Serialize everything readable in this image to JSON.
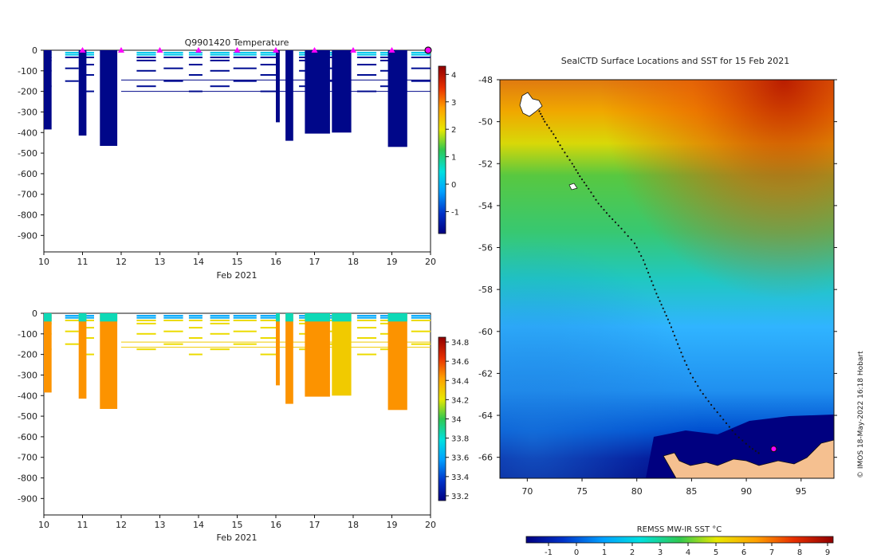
{
  "chart_data": [
    {
      "id": "temperature-section",
      "type": "heatmap",
      "title": "Q9901420  Temperature",
      "xlabel": "Feb 2021",
      "ylabel": "",
      "xlim": [
        10,
        20
      ],
      "ylim": [
        -980,
        0
      ],
      "x_ticks": [
        10,
        11,
        12,
        13,
        14,
        15,
        16,
        17,
        18,
        19,
        20
      ],
      "y_ticks": [
        0,
        -100,
        -200,
        -300,
        -400,
        -500,
        -600,
        -700,
        -800,
        -900
      ],
      "colorbar": {
        "min": -1.8,
        "max": 4.3,
        "ticks": [
          -1,
          0,
          1,
          2,
          3,
          4
        ],
        "colors": [
          "#000080",
          "#0032c8",
          "#00a0ff",
          "#00e0e0",
          "#30c850",
          "#e8e800",
          "#ffa000",
          "#e83000",
          "#900000"
        ]
      },
      "markers": [
        11,
        12,
        13,
        14,
        15,
        16,
        17,
        18,
        19
      ],
      "end_marker": 20,
      "casts": [
        {
          "x0": 10.0,
          "x1": 10.2,
          "bottom": 385,
          "value": -1.7
        },
        {
          "x0": 10.9,
          "x1": 11.1,
          "bottom": 415,
          "value": -1.7
        },
        {
          "x0": 11.45,
          "x1": 11.9,
          "bottom": 465,
          "value": -1.7
        },
        {
          "x0": 16.0,
          "x1": 16.1,
          "bottom": 350,
          "value": -1.7
        },
        {
          "x0": 16.25,
          "x1": 16.45,
          "bottom": 440,
          "value": -1.7
        },
        {
          "x0": 16.75,
          "x1": 17.4,
          "bottom": 405,
          "value": -1.7
        },
        {
          "x0": 17.45,
          "x1": 17.95,
          "bottom": 400,
          "value": -1.7
        },
        {
          "x0": 18.9,
          "x1": 19.4,
          "bottom": 470,
          "value": -1.7
        }
      ]
    },
    {
      "id": "salinity-section",
      "type": "heatmap",
      "title": "",
      "xlabel": "Feb 2021",
      "ylabel": "",
      "xlim": [
        10,
        20
      ],
      "ylim": [
        -980,
        0
      ],
      "x_ticks": [
        10,
        11,
        12,
        13,
        14,
        15,
        16,
        17,
        18,
        19,
        20
      ],
      "y_ticks": [
        0,
        -100,
        -200,
        -300,
        -400,
        -500,
        -600,
        -700,
        -800,
        -900
      ],
      "colorbar": {
        "min": 33.15,
        "max": 34.85,
        "ticks": [
          33.2,
          33.4,
          33.6,
          33.8,
          34,
          34.2,
          34.4,
          34.6,
          34.8
        ],
        "colors": [
          "#000080",
          "#0032c8",
          "#00a0ff",
          "#00e0e0",
          "#30c850",
          "#e8e800",
          "#ffa000",
          "#e83000",
          "#900000"
        ]
      },
      "casts": [
        {
          "x0": 10.0,
          "x1": 10.2,
          "bottom": 385,
          "value": 34.45
        },
        {
          "x0": 10.9,
          "x1": 11.1,
          "bottom": 415,
          "value": 34.45
        },
        {
          "x0": 11.45,
          "x1": 11.9,
          "bottom": 465,
          "value": 34.45
        },
        {
          "x0": 16.0,
          "x1": 16.1,
          "bottom": 350,
          "value": 34.45
        },
        {
          "x0": 16.25,
          "x1": 16.45,
          "bottom": 440,
          "value": 34.45
        },
        {
          "x0": 16.75,
          "x1": 17.4,
          "bottom": 405,
          "value": 34.45
        },
        {
          "x0": 17.45,
          "x1": 17.95,
          "bottom": 400,
          "value": 34.3
        },
        {
          "x0": 18.9,
          "x1": 19.4,
          "bottom": 470,
          "value": 34.45
        }
      ]
    },
    {
      "id": "sst-map",
      "type": "heatmap",
      "title": "SealCTD Surface Locations and SST for 15 Feb 2021",
      "xlabel": "",
      "ylabel": "",
      "xlim": [
        67.5,
        98
      ],
      "ylim": [
        -67,
        -48
      ],
      "x_ticks": [
        70,
        75,
        80,
        85,
        90,
        95
      ],
      "y_ticks": [
        -48,
        -50,
        -52,
        -54,
        -56,
        -58,
        -60,
        -62,
        -64,
        -66
      ],
      "colorbar": {
        "label": "REMSS MW-IR SST °C",
        "min": -1.8,
        "max": 9.2,
        "ticks": [
          -1,
          0,
          1,
          2,
          3,
          4,
          5,
          6,
          7,
          8,
          9
        ],
        "colors": [
          "#000080",
          "#0032c8",
          "#00a0ff",
          "#00e0e0",
          "#30c850",
          "#e8e800",
          "#ffa000",
          "#e83000",
          "#900000"
        ]
      },
      "track": [
        [
          71.1,
          -49.5
        ],
        [
          71.6,
          -50.0
        ],
        [
          72.4,
          -50.6
        ],
        [
          73.2,
          -51.3
        ],
        [
          74.1,
          -52.0
        ],
        [
          74.8,
          -52.6
        ],
        [
          75.6,
          -53.2
        ],
        [
          76.5,
          -53.9
        ],
        [
          77.5,
          -54.5
        ],
        [
          78.6,
          -55.1
        ],
        [
          79.8,
          -55.8
        ],
        [
          80.6,
          -56.6
        ],
        [
          81.2,
          -57.4
        ],
        [
          81.8,
          -58.2
        ],
        [
          82.4,
          -58.9
        ],
        [
          83.0,
          -59.6
        ],
        [
          83.6,
          -60.4
        ],
        [
          84.2,
          -61.2
        ],
        [
          84.9,
          -62.0
        ],
        [
          85.8,
          -62.8
        ],
        [
          86.8,
          -63.5
        ],
        [
          87.9,
          -64.2
        ],
        [
          89.0,
          -64.9
        ],
        [
          90.3,
          -65.5
        ],
        [
          91.4,
          -65.9
        ]
      ],
      "final_position": [
        92.5,
        -65.6
      ]
    }
  ],
  "footer_credit": "© IMOS 18-May-2022 16:18 Hobart"
}
